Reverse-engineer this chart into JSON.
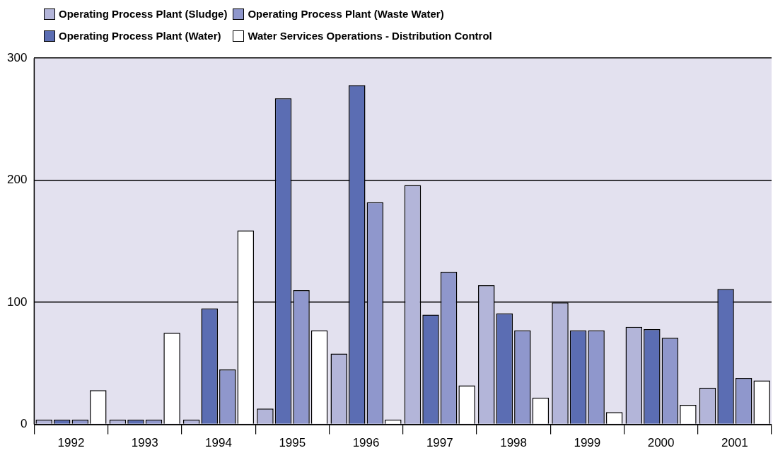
{
  "chart_data": {
    "type": "bar",
    "categories": [
      "1992",
      "1993",
      "1994",
      "1995",
      "1996",
      "1997",
      "1998",
      "1999",
      "2000",
      "2001"
    ],
    "series": [
      {
        "name": "Operating Process Plant (Sludge)",
        "color": "#b3b5d9",
        "values": [
          4,
          4,
          4,
          13,
          58,
          196,
          114,
          100,
          80,
          30
        ]
      },
      {
        "name": "Operating Process Plant (Water)",
        "color": "#5b6db3",
        "values": [
          4,
          4,
          95,
          267,
          278,
          90,
          91,
          77,
          78,
          111
        ]
      },
      {
        "name": "Operating Process Plant (Waste Water)",
        "color": "#8f97cc",
        "values": [
          4,
          4,
          45,
          110,
          182,
          125,
          77,
          77,
          71,
          38
        ]
      },
      {
        "name": "Water Services Operations - Distribution Control",
        "color": "#ffffff",
        "values": [
          28,
          75,
          159,
          77,
          4,
          32,
          22,
          10,
          16,
          36
        ]
      }
    ],
    "ylim": [
      0,
      300
    ],
    "yticks": [
      0,
      100,
      200,
      300
    ],
    "grid": "y",
    "legend": "top left"
  }
}
